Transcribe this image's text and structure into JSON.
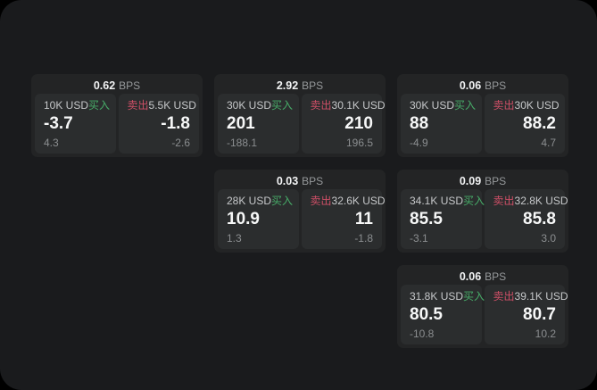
{
  "labels": {
    "bps_unit": "BPS",
    "buy": "买入",
    "sell": "卖出"
  },
  "colors": {
    "background": "#000000",
    "panel_bg": "#1a1b1d",
    "card_bg": "#232425",
    "tile_bg": "#2b2d2e",
    "buy_green": "#47ab68",
    "sell_red": "#cd4f66",
    "value_white": "#f7f8f8",
    "label_gray": "#c6c8ca",
    "sub_gray": "#8b8e90"
  },
  "cards": [
    {
      "bps": "0.62",
      "buy": {
        "notional": "10K USD",
        "price": "-3.7",
        "change": "4.3"
      },
      "sell": {
        "notional": "5.5K USD",
        "price": "-1.8",
        "change": "-2.6"
      }
    },
    {
      "bps": "2.92",
      "buy": {
        "notional": "30K USD",
        "price": "201",
        "change": "-188.1"
      },
      "sell": {
        "notional": "30.1K USD",
        "price": "210",
        "change": "196.5"
      }
    },
    {
      "bps": "0.06",
      "buy": {
        "notional": "30K USD",
        "price": "88",
        "change": "-4.9"
      },
      "sell": {
        "notional": "30K USD",
        "price": "88.2",
        "change": "4.7"
      }
    },
    {
      "bps": "0.03",
      "buy": {
        "notional": "28K USD",
        "price": "10.9",
        "change": "1.3"
      },
      "sell": {
        "notional": "32.6K USD",
        "price": "11",
        "change": "-1.8"
      }
    },
    {
      "bps": "0.09",
      "buy": {
        "notional": "34.1K USD",
        "price": "85.5",
        "change": "-3.1"
      },
      "sell": {
        "notional": "32.8K USD",
        "price": "85.8",
        "change": "3.0"
      }
    },
    {
      "bps": "0.06",
      "buy": {
        "notional": "31.8K USD",
        "price": "80.5",
        "change": "-10.8"
      },
      "sell": {
        "notional": "39.1K USD",
        "price": "80.7",
        "change": "10.2"
      }
    }
  ]
}
